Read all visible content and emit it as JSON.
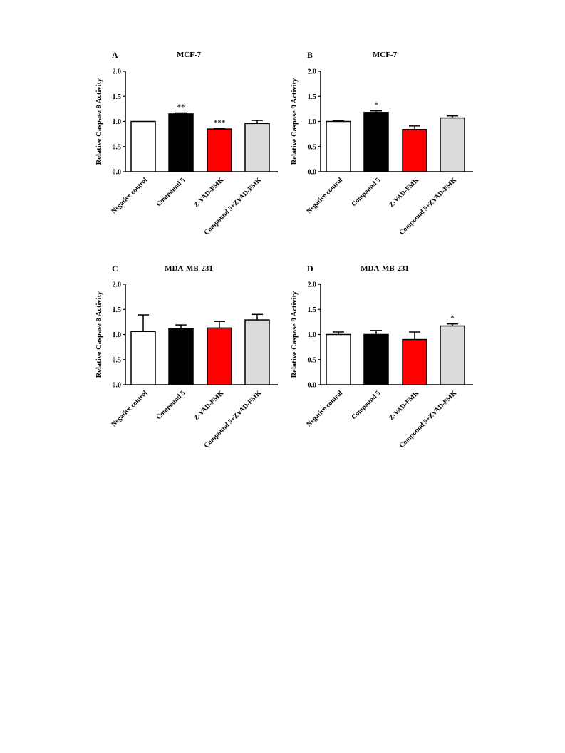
{
  "chart_data": [
    {
      "type": "bar",
      "panel": "A",
      "title": "MCF-7",
      "ylabel": "Relative Caspase 8 Activity",
      "xlabel": "",
      "ylim": [
        0,
        2.0
      ],
      "yticks": [
        "0.0",
        "0.5",
        "1.0",
        "1.5",
        "2.0"
      ],
      "categories": [
        "Negative control",
        "Compound 5",
        "Z-VAD-FMK",
        "Compound 5+ZVAD-FMK"
      ],
      "values": [
        1.0,
        1.15,
        0.85,
        0.96
      ],
      "errors": [
        0.0,
        0.02,
        0.01,
        0.06
      ],
      "significance": [
        "",
        "**",
        "***",
        ""
      ],
      "colors": [
        "#ffffff",
        "#000000",
        "#ff0000",
        "#dcdcdc"
      ]
    },
    {
      "type": "bar",
      "panel": "B",
      "title": "MCF-7",
      "ylabel": "Relative Caspase 9 Activity",
      "xlabel": "",
      "ylim": [
        0,
        2.0
      ],
      "yticks": [
        "0.0",
        "0.5",
        "1.0",
        "1.5",
        "2.0"
      ],
      "categories": [
        "Negative control",
        "Compound 5",
        "Z-VAD-FMK",
        "Compound 5+ZVAD-FMK"
      ],
      "values": [
        1.0,
        1.18,
        0.84,
        1.07
      ],
      "errors": [
        0.01,
        0.03,
        0.07,
        0.04
      ],
      "significance": [
        "",
        "*",
        "",
        ""
      ],
      "colors": [
        "#ffffff",
        "#000000",
        "#ff0000",
        "#dcdcdc"
      ]
    },
    {
      "type": "bar",
      "panel": "C",
      "title": "MDA-MB-231",
      "ylabel": "Relative Caspase 8 Activity",
      "xlabel": "",
      "ylim": [
        0,
        2.0
      ],
      "yticks": [
        "0.0",
        "0.5",
        "1.0",
        "1.5",
        "2.0"
      ],
      "categories": [
        "Negative control",
        "Compound 5",
        "Z-VAD-FMK",
        "Compound 5+ZVAD-FMK"
      ],
      "values": [
        1.06,
        1.11,
        1.13,
        1.29
      ],
      "errors": [
        0.33,
        0.08,
        0.13,
        0.11
      ],
      "significance": [
        "",
        "",
        "",
        ""
      ],
      "colors": [
        "#ffffff",
        "#000000",
        "#ff0000",
        "#dcdcdc"
      ]
    },
    {
      "type": "bar",
      "panel": "D",
      "title": "MDA-MB-231",
      "ylabel": "Relative Caspase 9 Activity",
      "xlabel": "",
      "ylim": [
        0,
        2.0
      ],
      "yticks": [
        "0.0",
        "0.5",
        "1.0",
        "1.5",
        "2.0"
      ],
      "categories": [
        "Negative control",
        "Compound 5",
        "Z-VAD-FMK",
        "Compound 5+ZVAD-FMK"
      ],
      "values": [
        1.0,
        1.0,
        0.9,
        1.17
      ],
      "errors": [
        0.05,
        0.08,
        0.15,
        0.04
      ],
      "significance": [
        "",
        "",
        "",
        "*"
      ],
      "colors": [
        "#ffffff",
        "#000000",
        "#ff0000",
        "#dcdcdc"
      ]
    }
  ]
}
